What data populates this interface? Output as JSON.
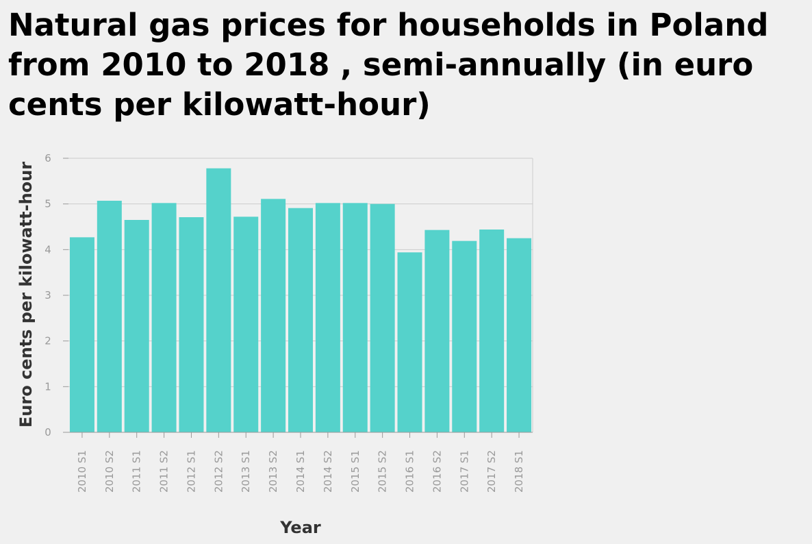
{
  "chart_data": {
    "type": "bar",
    "title": "Natural gas prices for households in Poland from 2010 to 2018 , semi-annually (in euro cents per kilowatt-hour)",
    "xlabel": "Year",
    "ylabel": "Euro cents per kilowatt-hour",
    "categories": [
      "2010 S1",
      "2010 S2",
      "2011 S1",
      "2011 S2",
      "2012 S1",
      "2012 S2",
      "2013 S1",
      "2013 S2",
      "2014 S1",
      "2014 S2",
      "2015 S1",
      "2015 S2",
      "2016 S1",
      "2016 S2",
      "2017 S1",
      "2017 S2",
      "2018 S1"
    ],
    "values": [
      4.27,
      5.07,
      4.65,
      5.02,
      4.71,
      5.78,
      4.72,
      5.11,
      4.91,
      5.02,
      5.02,
      5.0,
      3.94,
      4.43,
      4.19,
      4.44,
      4.25
    ],
    "ylim": [
      0,
      6
    ],
    "yticks": [
      0,
      1,
      2,
      3,
      4,
      5,
      6
    ],
    "grid": true,
    "bar_color": "#55d2cb",
    "grid_color": "#cccccc"
  }
}
